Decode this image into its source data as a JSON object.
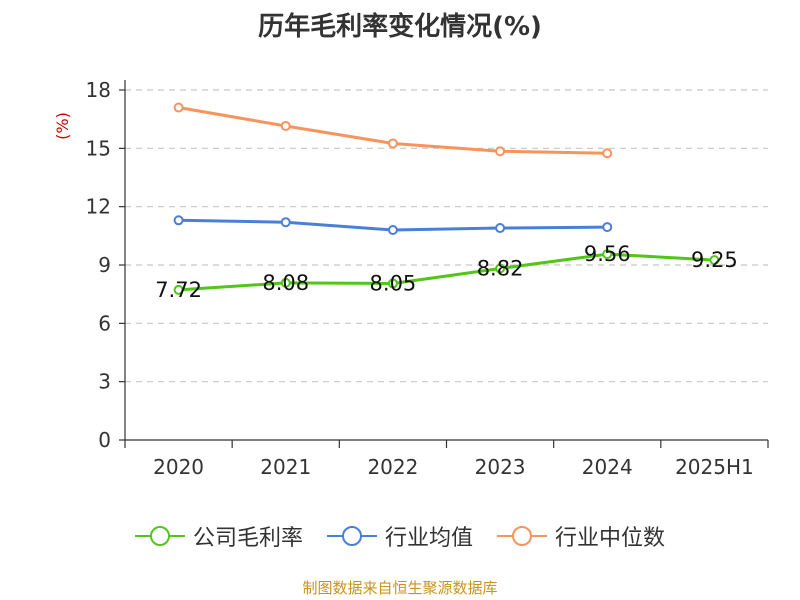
{
  "title": "历年毛利率变化情况(%)",
  "source": "制图数据来自恒生聚源数据库",
  "chart_data": {
    "type": "line",
    "categories": [
      "2020",
      "2021",
      "2022",
      "2023",
      "2024",
      "2025H1"
    ],
    "ylabel": "(%)",
    "ylim": [
      0,
      18
    ],
    "yticks": [
      0,
      3,
      6,
      9,
      12,
      15,
      18
    ],
    "grid": true,
    "legend_position": "bottom",
    "series": [
      {
        "name": "公司毛利率",
        "color": "#52c41a",
        "values": [
          7.72,
          8.08,
          8.05,
          8.82,
          9.56,
          9.25
        ],
        "labels": [
          "7.72",
          "8.08",
          "8.05",
          "8.82",
          "9.56",
          "9.25"
        ],
        "show_labels": true
      },
      {
        "name": "行业均值",
        "color": "#4a7fd8",
        "values": [
          11.3,
          11.2,
          10.8,
          10.9,
          10.95,
          null
        ],
        "show_labels": false
      },
      {
        "name": "行业中位数",
        "color": "#f7945c",
        "values": [
          17.1,
          16.15,
          15.25,
          14.85,
          14.75,
          null
        ],
        "show_labels": false
      }
    ]
  }
}
